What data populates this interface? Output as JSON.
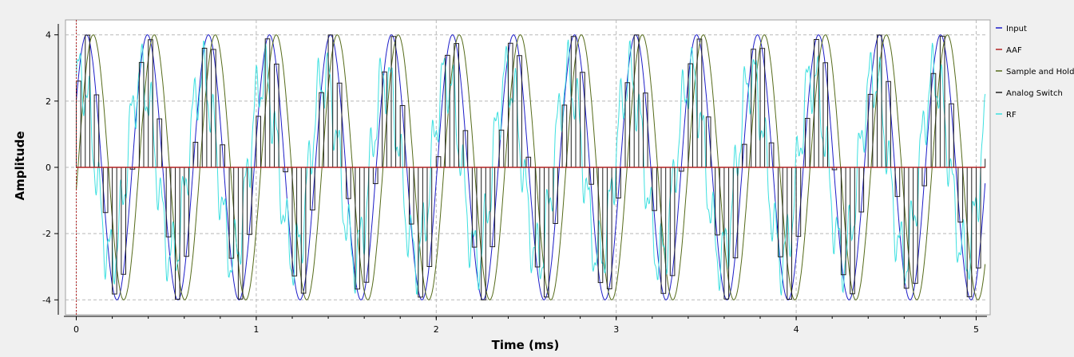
{
  "chart_data": {
    "type": "line",
    "xlabel": "Time (ms)",
    "ylabel": "Amplitude",
    "xlim": [
      -0.06,
      5.06
    ],
    "ylim": [
      -4.45,
      4.45
    ],
    "x_ticks": [
      0,
      1,
      2,
      3,
      4,
      5
    ],
    "y_ticks": [
      -4,
      -2,
      0,
      2,
      4
    ],
    "grid": true,
    "legend_position": "right",
    "series": [
      {
        "name": "Input",
        "color": "#1c1cc8",
        "kind": "sine",
        "amplitude": 4,
        "frequency_khz": 2.95,
        "phase_deg": 30
      },
      {
        "name": "AAF",
        "color": "#b22222",
        "kind": "constant",
        "value": 0
      },
      {
        "name": "Sample and Hold",
        "color": "#556b1a",
        "kind": "sampled",
        "amplitude": 4,
        "frequency_khz": 2.95,
        "phase_deg": -10
      },
      {
        "name": "Analog Switch",
        "color": "#202020",
        "kind": "switched",
        "amplitude": 4,
        "sample_period_ms": 0.05
      },
      {
        "name": "RF",
        "color": "#3ee0e0",
        "kind": "noisy-sine",
        "amplitude": 3.8,
        "frequency_khz": 2.95
      }
    ]
  }
}
